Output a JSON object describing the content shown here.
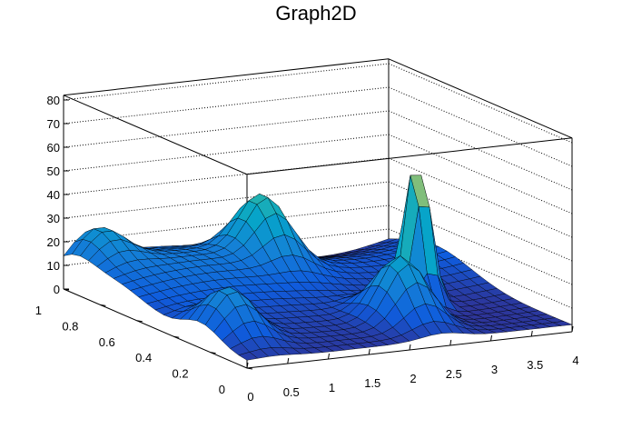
{
  "chart_data": {
    "type": "surface",
    "title": "Graph2D",
    "xlabel": "",
    "ylabel": "",
    "zlabel": "",
    "xlim": [
      0,
      4
    ],
    "ylim": [
      0,
      1
    ],
    "zlim": [
      0,
      82
    ],
    "x_ticks": [
      "0",
      "0.5",
      "1",
      "1.5",
      "2",
      "2.5",
      "3",
      "3.5",
      "4"
    ],
    "y_ticks": [
      "0",
      "0.2",
      "0.4",
      "0.6",
      "0.8",
      "1"
    ],
    "z_ticks": [
      "0",
      "10",
      "20",
      "30",
      "40",
      "50",
      "60",
      "70",
      "80"
    ],
    "grid": true,
    "colormap": [
      "#352a87",
      "#0f5cdd",
      "#1481d6",
      "#06a4ca",
      "#2eb7a4",
      "#87bf77",
      "#d1bb59",
      "#fec832",
      "#f9fb0e"
    ],
    "peaks": [
      {
        "x": 3.0,
        "y": 0.4,
        "z": 75
      },
      {
        "x": 2.4,
        "y": 0.22,
        "z": 40
      },
      {
        "x": 0.3,
        "y": 0.95,
        "z": 27
      },
      {
        "x": 0.35,
        "y": 0.25,
        "z": 32
      },
      {
        "x": 2.0,
        "y": 0.8,
        "z": 38
      }
    ]
  }
}
